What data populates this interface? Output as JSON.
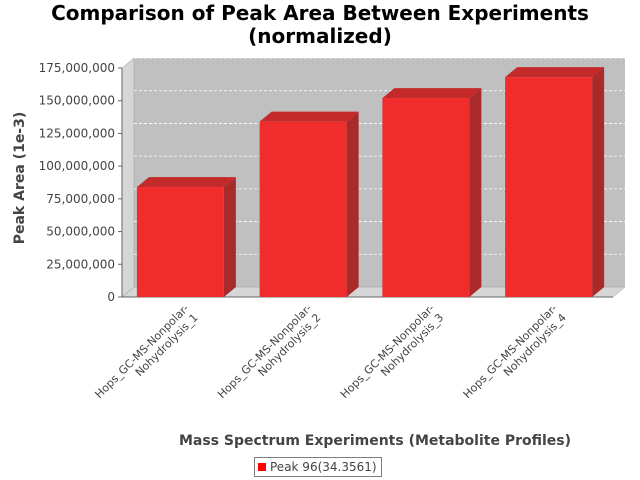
{
  "chart_data": {
    "type": "bar",
    "title_lines": [
      "Comparison of Peak Area Between Experiments",
      "(normalized)"
    ],
    "xlabel": "Mass Spectrum Experiments (Metabolite Profiles)",
    "ylabel": "Peak Area (1e-3)",
    "ylim": [
      0,
      175000000
    ],
    "yticks": [
      0,
      25000000,
      50000000,
      75000000,
      100000000,
      125000000,
      150000000,
      175000000
    ],
    "ytick_labels": [
      "0",
      "25,000,000",
      "50,000,000",
      "75,000,000",
      "100,000,000",
      "125,000,000",
      "150,000,000",
      "175,000,000"
    ],
    "grid": true,
    "legend_position": "bottom",
    "categories": [
      [
        "Hops_GC-MS-Nonpolar-",
        "Nohydrolysis_1"
      ],
      [
        "Hops_GC-MS-Nonpolar-",
        "Nohydrolysis_2"
      ],
      [
        "Hops_GC-MS-Nonpolar-",
        "Nohydrolysis_3"
      ],
      [
        "Hops_GC-MS-Nonpolar-",
        "Nohydrolysis_4"
      ]
    ],
    "series": [
      {
        "name": "Peak 96(34.3561)",
        "color": "#ff0000",
        "values": [
          84000000,
          134000000,
          152000000,
          168000000
        ]
      }
    ]
  }
}
